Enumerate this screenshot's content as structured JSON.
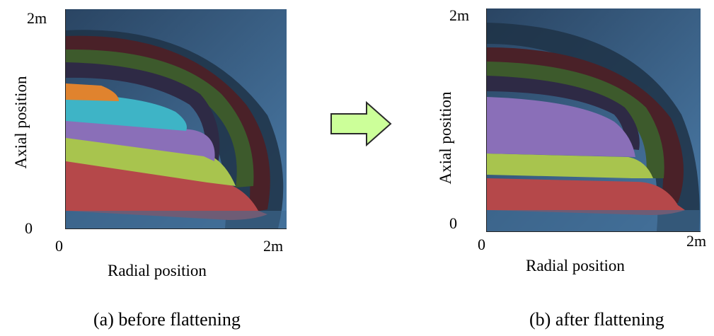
{
  "panels": [
    {
      "caption": "(a) before flattening",
      "xlabel": "Radial position",
      "ylabel": "Axial position",
      "x_tick_start": "0",
      "x_tick_end": "2m",
      "y_tick_start": "0",
      "y_tick_end": "2m"
    },
    {
      "caption": "(b) after flattening",
      "xlabel": "Radial position",
      "ylabel": "Axial position",
      "x_tick_start": "0",
      "x_tick_end": "2m",
      "y_tick_start": "0",
      "y_tick_end": "2m"
    }
  ],
  "colors": {
    "background": "#3f6a93",
    "outer_dark": "#1f3347",
    "red": "#b5484a",
    "green": "#a8c44e",
    "purple": "#8a6fb8",
    "cyan": "#3eb4c6",
    "orange": "#e0832e",
    "dark_red": "#4a2128",
    "dark_green": "#3d5a2c",
    "dark_purple": "#2e2a45",
    "arrow_fill": "#ccff99"
  },
  "arrow_icon": "right-arrow-icon"
}
